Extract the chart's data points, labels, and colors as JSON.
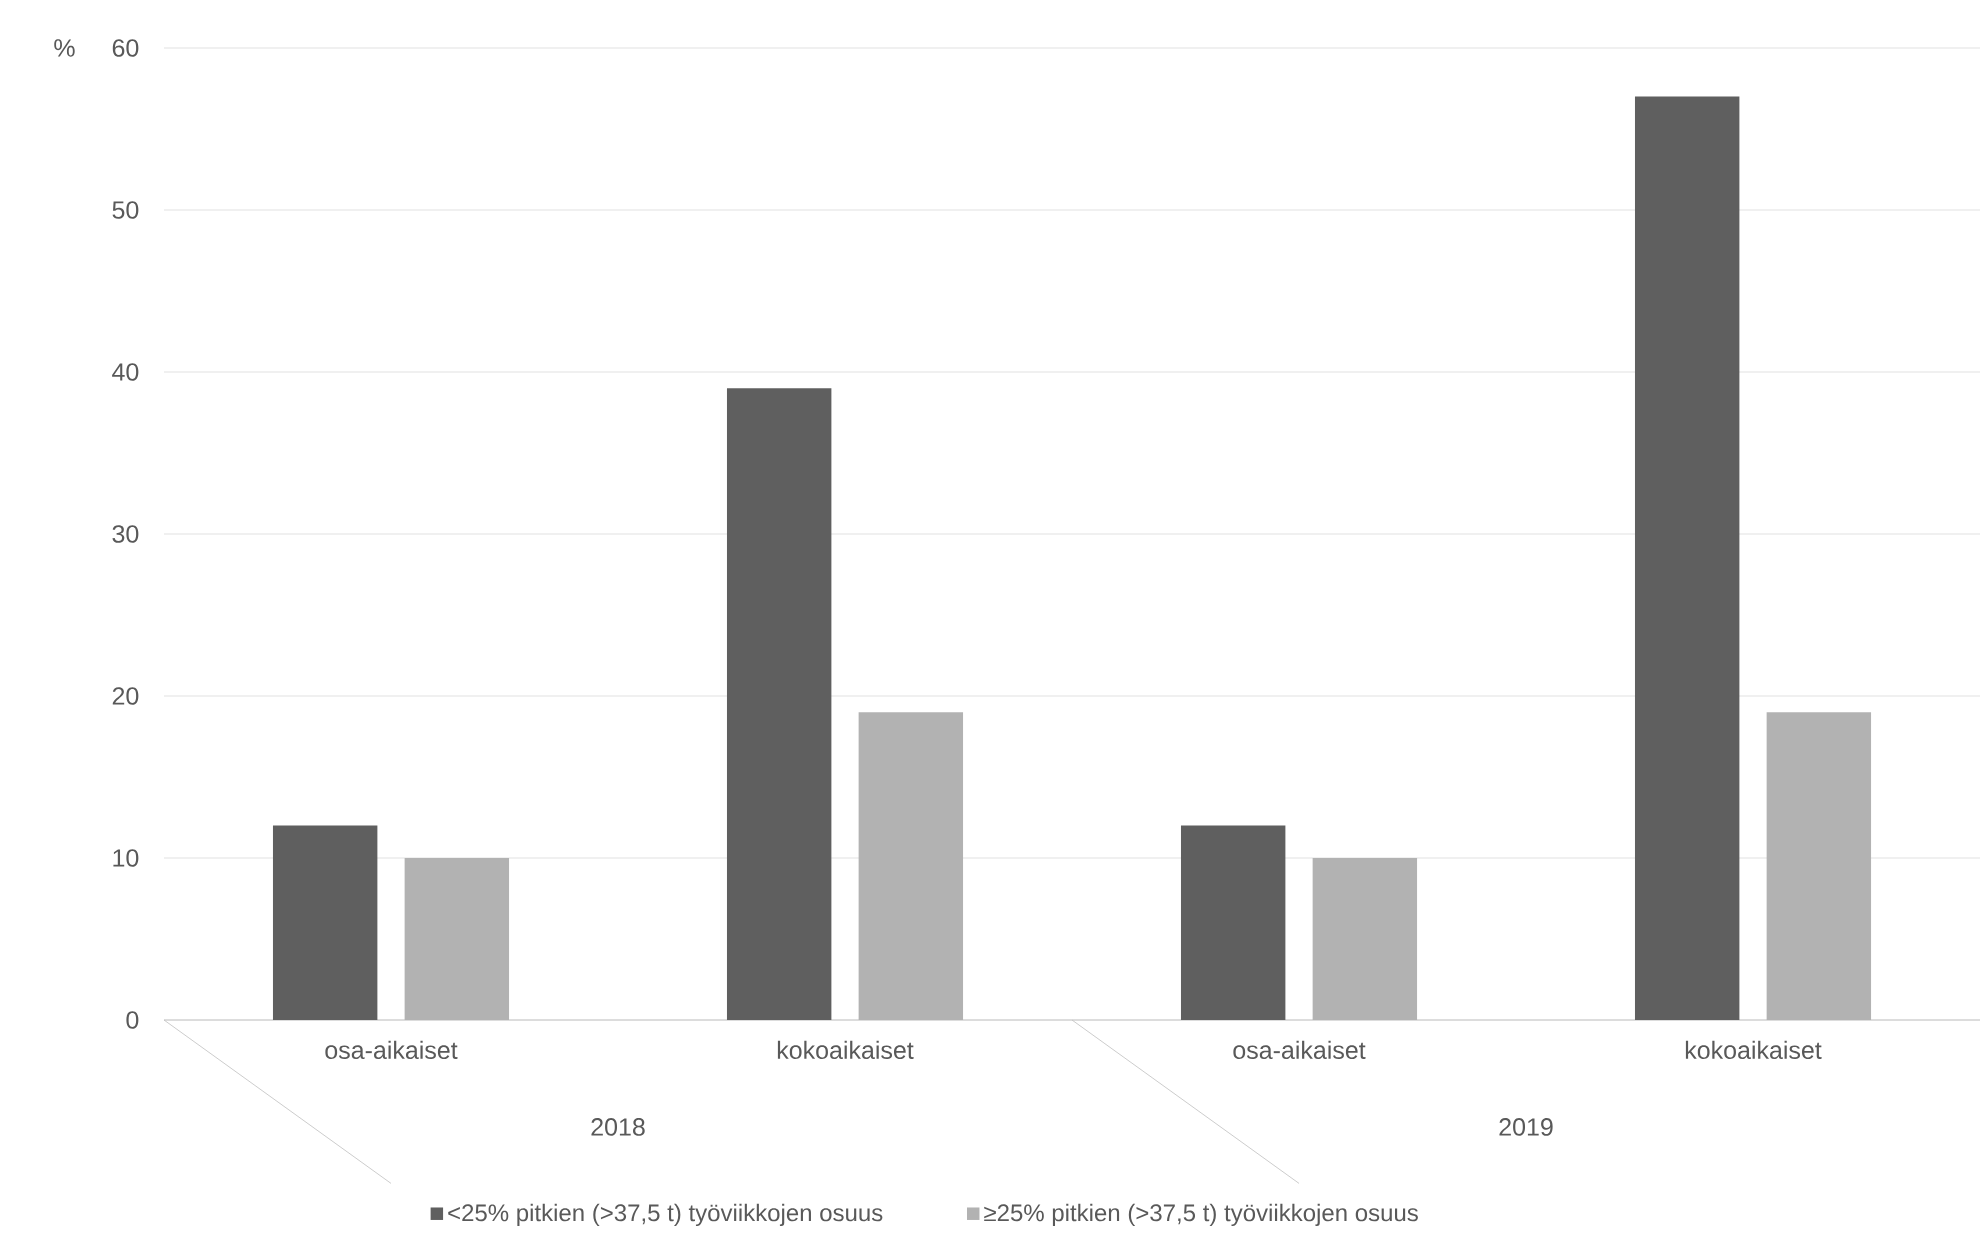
{
  "chart_data": {
    "type": "bar",
    "ylabel": "%",
    "categories": [
      "osa-aikaiset",
      "kokoaikaiset",
      "osa-aikaiset",
      "kokoaikaiset"
    ],
    "series": [
      {
        "name": "<25% pitkien (>37,5 t) työviikkojen osuus",
        "color": "#5f5f5f",
        "values": [
          12,
          39,
          12,
          57
        ]
      },
      {
        "name": "≥25% pitkien (>37,5 t) työviikkojen osuus",
        "color": "#b2b2b2",
        "values": [
          10,
          19,
          10,
          19
        ]
      }
    ],
    "annotations": [
      "2018",
      "2019"
    ],
    "ylim": [
      0,
      60
    ],
    "yticks": [
      0,
      10,
      20,
      30,
      40,
      50,
      60
    ],
    "grid": "y",
    "legend": "bottom"
  }
}
